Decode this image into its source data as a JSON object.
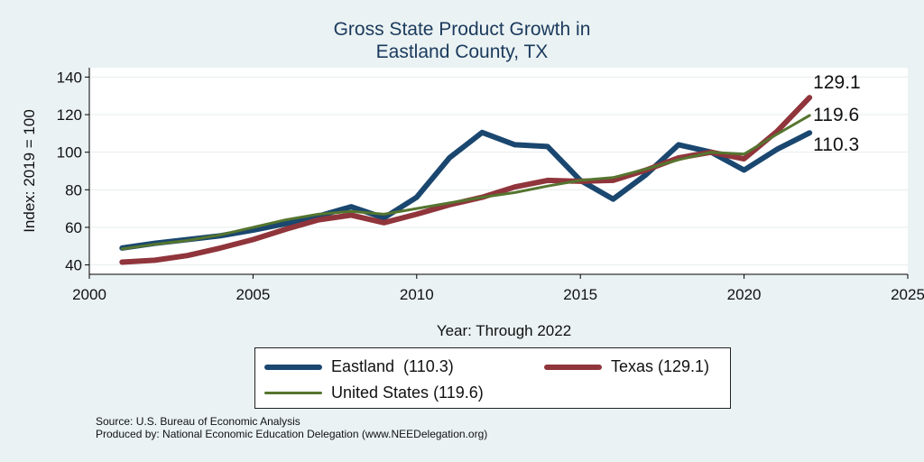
{
  "chart_data": {
    "type": "line",
    "title": [
      "Gross State Product Growth in",
      "Eastland County, TX"
    ],
    "xlabel": "Year: Through 2022",
    "ylabel": "Index: 2019 = 100",
    "xlim": [
      2000,
      2025
    ],
    "ylim": [
      35,
      145
    ],
    "xticks": [
      2000,
      2005,
      2010,
      2015,
      2020,
      2025
    ],
    "yticks": [
      40,
      60,
      80,
      100,
      120,
      140
    ],
    "grid": true,
    "legend_position": "bottom",
    "x": [
      2001,
      2002,
      2003,
      2004,
      2005,
      2006,
      2007,
      2008,
      2009,
      2010,
      2011,
      2012,
      2013,
      2014,
      2015,
      2016,
      2017,
      2018,
      2019,
      2020,
      2021,
      2022
    ],
    "series": [
      {
        "name": "Eastland",
        "legend": "Eastland  (110.3)",
        "color": "#1a476f",
        "values": [
          49,
          51.5,
          53.5,
          55.5,
          58.5,
          62,
          66,
          71,
          65,
          76,
          97,
          110.5,
          104,
          103,
          85,
          75,
          88,
          104,
          100,
          90.5,
          101.5,
          110.3
        ],
        "end_label": "110.3"
      },
      {
        "name": "Texas",
        "legend": "Texas (129.1)",
        "color": "#90353b",
        "values": [
          41.5,
          42.5,
          45,
          49,
          53.5,
          59,
          64,
          66.5,
          62.5,
          67,
          72,
          76,
          81.5,
          85,
          84.5,
          85,
          90.5,
          97,
          100,
          96.5,
          111,
          129.1
        ],
        "end_label": "129.1"
      },
      {
        "name": "United States",
        "legend": "United States (119.6)",
        "color": "#55752f",
        "values": [
          48.5,
          51,
          53,
          56,
          60,
          64,
          67,
          68.5,
          67,
          70,
          73,
          76,
          78.5,
          82,
          85,
          86.5,
          91,
          96,
          100,
          99,
          109.5,
          119.6
        ],
        "end_label": "119.6"
      }
    ]
  },
  "notes": {
    "source": "Source: U.S. Bureau of Economic Analysis",
    "produced": "Produced by: National Economic Education Delegation (www.NEEDelegation.org)"
  }
}
